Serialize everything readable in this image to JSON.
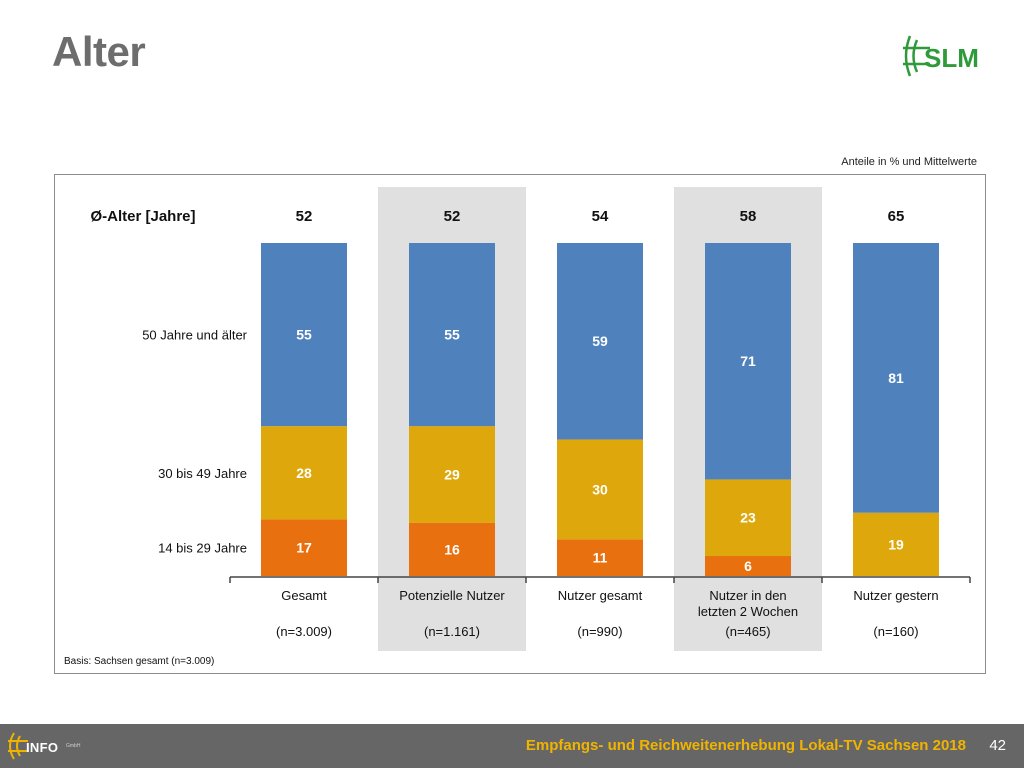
{
  "page": {
    "title": "Alter",
    "note": "Anteile in % und Mittelwerte",
    "basis": "Basis: Sachsen gesamt (n=3.009)"
  },
  "logo": {
    "text": "SLM",
    "color": "#2f9a3a"
  },
  "footer": {
    "text": "Empfangs- und Reichweitenerhebung Lokal-TV Sachsen 2018",
    "page_number": "42",
    "info_logo_text": "INFO",
    "info_logo_small": "GmbH"
  },
  "chart_data": {
    "type": "bar",
    "stacked": true,
    "avg_label": "Ø-Alter [Jahre]",
    "averages": [
      "52",
      "52",
      "54",
      "58",
      "65"
    ],
    "categories": [
      "Gesamt",
      "Potenzielle Nutzer",
      "Nutzer gesamt",
      "Nutzer in den letzten 2 Wochen",
      "Nutzer gestern"
    ],
    "category_lines": [
      [
        "Gesamt"
      ],
      [
        "Potenzielle Nutzer"
      ],
      [
        "Nutzer gesamt"
      ],
      [
        "Nutzer in den",
        "letzten 2 Wochen"
      ],
      [
        "Nutzer gestern"
      ]
    ],
    "sample_sizes": [
      "(n=3.009)",
      "(n=1.161)",
      "(n=990)",
      "(n=465)",
      "(n=160)"
    ],
    "highlighted": [
      false,
      true,
      false,
      true,
      false
    ],
    "series": [
      {
        "name": "14 bis 29 Jahre",
        "color": "#e8700f",
        "values": [
          17,
          16,
          11,
          6,
          0
        ]
      },
      {
        "name": "30 bis 49 Jahre",
        "color": "#dea80c",
        "values": [
          28,
          29,
          30,
          23,
          19
        ]
      },
      {
        "name": "50 Jahre und älter",
        "color": "#4f81bd",
        "values": [
          55,
          55,
          59,
          71,
          81
        ]
      }
    ],
    "ylim": [
      0,
      100
    ],
    "unit": "%"
  }
}
